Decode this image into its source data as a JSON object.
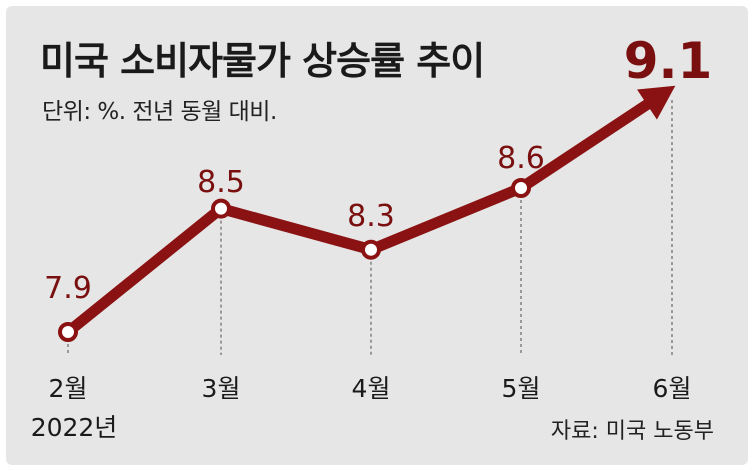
{
  "title": "미국 소비자물가 상승률 추이",
  "subtitle": "단위: %. 전년 동월 대비.",
  "source": "자료: 미국 노동부",
  "colors": {
    "line": "#8b1212",
    "label": "#7a0f0f",
    "background": "#e6e6e6"
  },
  "chart_data": {
    "type": "line",
    "categories": [
      "2월",
      "3월",
      "4월",
      "5월",
      "6월"
    ],
    "year_label": "2022년",
    "series": [
      {
        "values": [
          7.9,
          8.5,
          8.3,
          8.6,
          9.1
        ]
      }
    ],
    "data_labels": [
      "7.9",
      "8.5",
      "8.3",
      "8.6",
      "9.1"
    ],
    "ylim": [
      7.5,
      9.5
    ],
    "grid": false,
    "end_marker": "arrow"
  }
}
